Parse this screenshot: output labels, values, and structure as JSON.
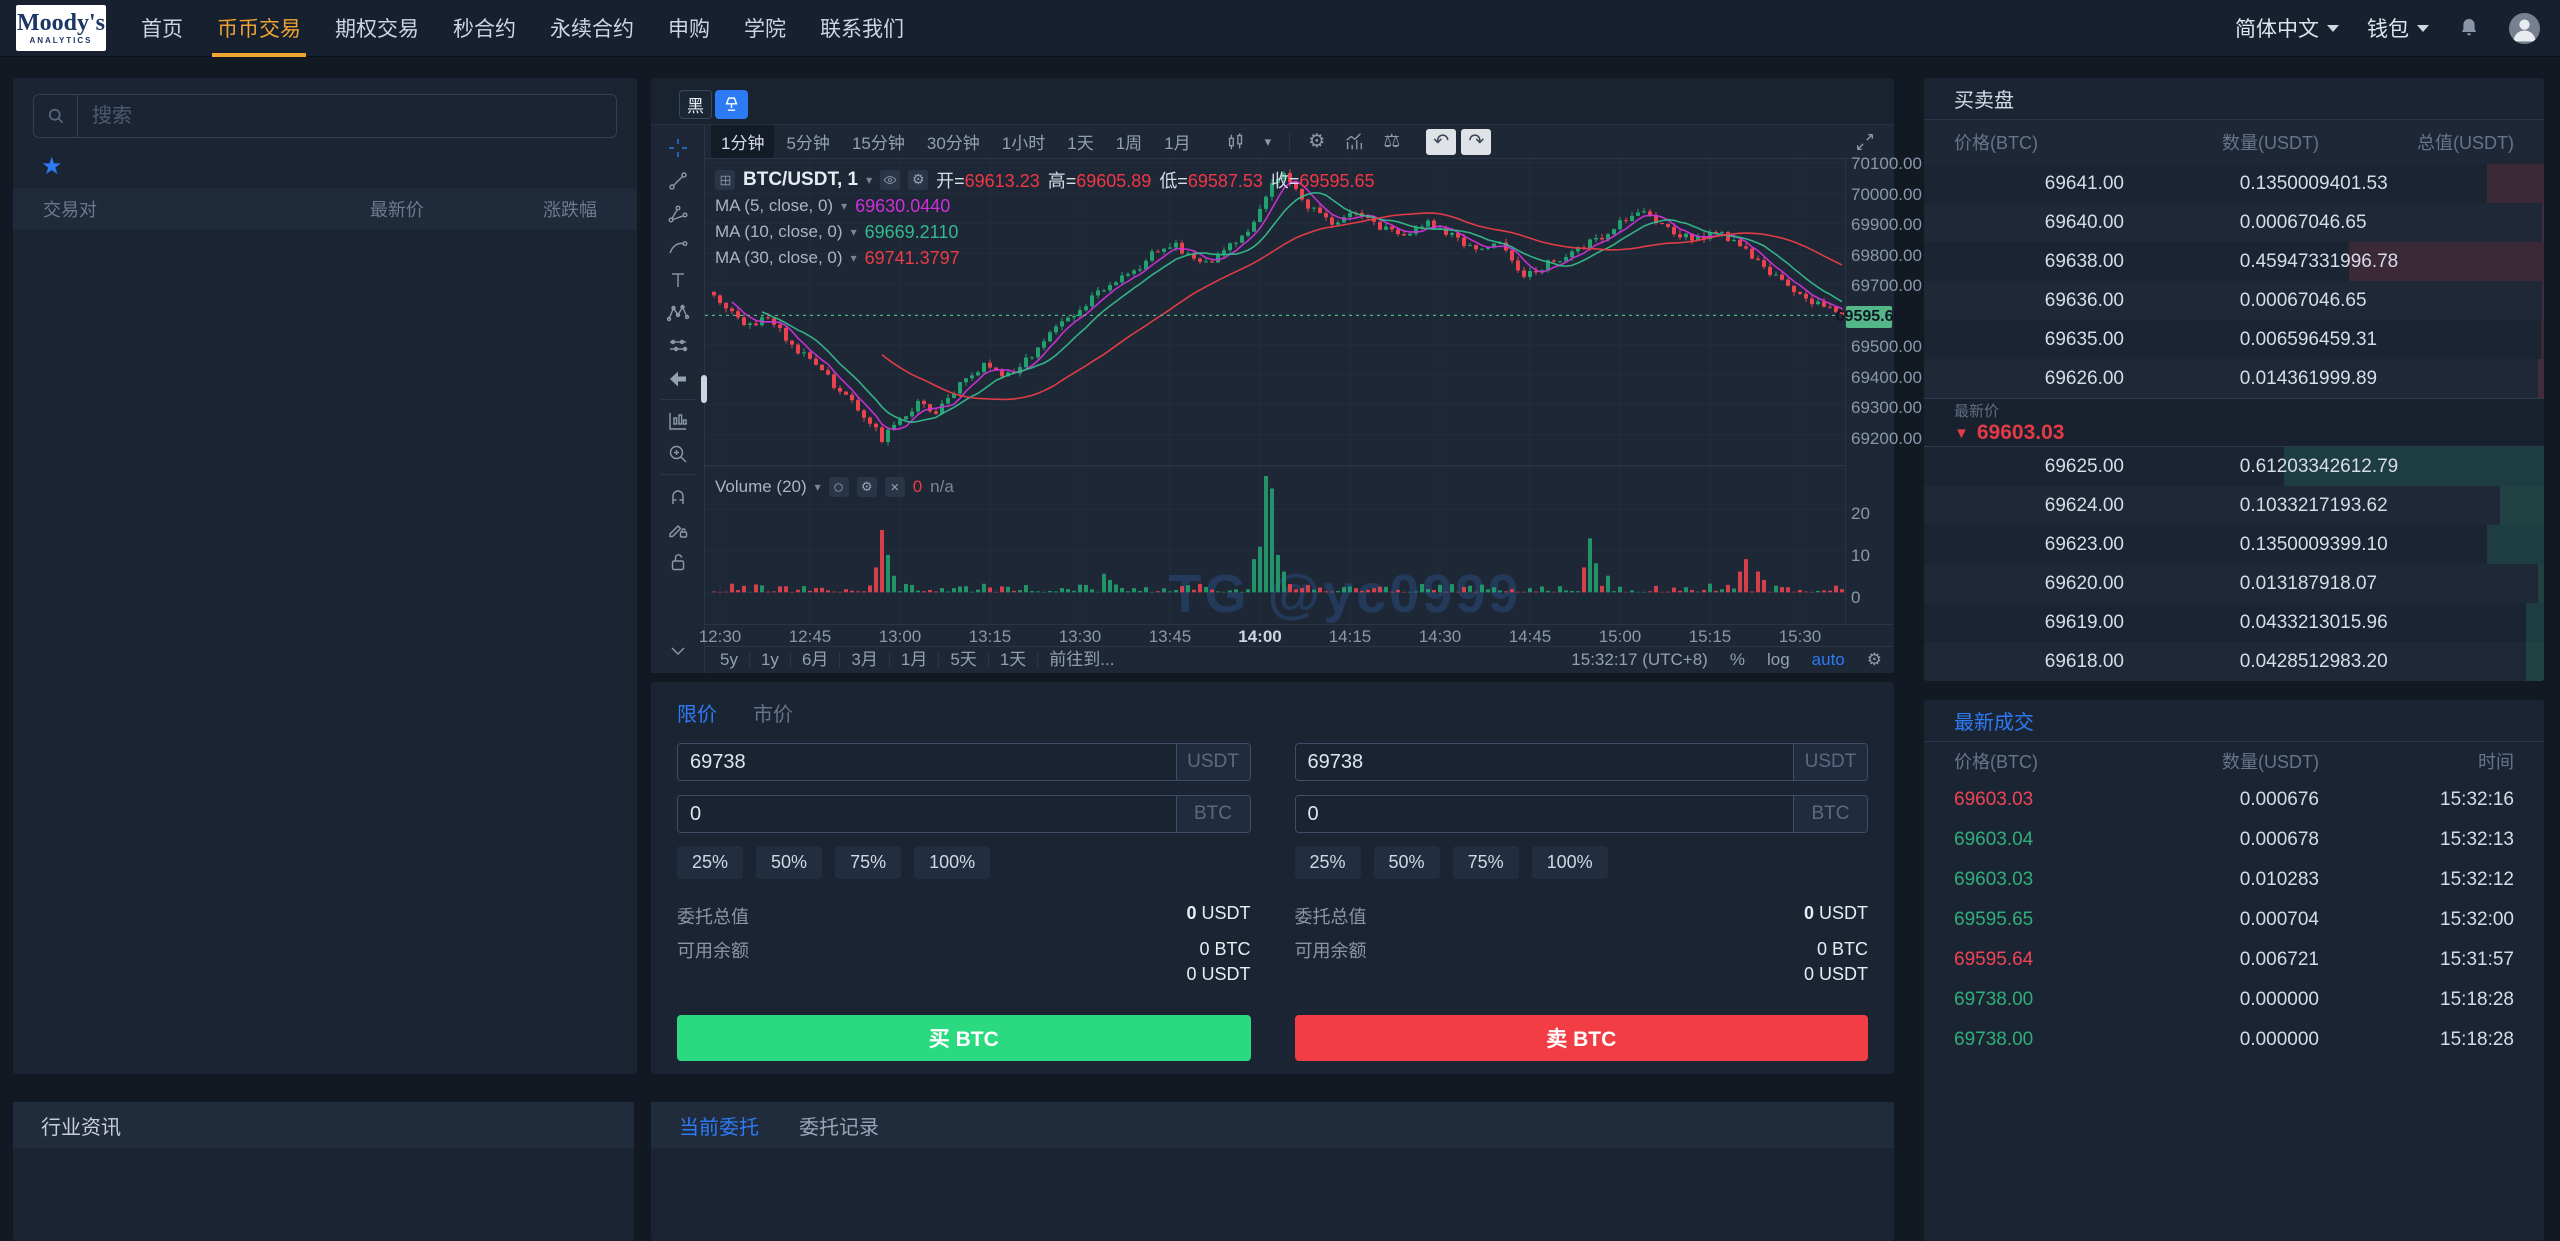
{
  "colors": {
    "accent_blue": "#2d7bf4",
    "accent_orange": "#f0a432",
    "up_green": "#2fae79",
    "down_red": "#ef4455",
    "buy_button": "#2bd981",
    "sell_button": "#f23d45",
    "price_tag_green": "#55b688"
  },
  "icons": {
    "star": "★",
    "gear": "⚙",
    "compare": "⚖",
    "undo": "↶",
    "redo": "↷",
    "caret_down": "▾",
    "close": "×",
    "arrow_down": "▼",
    "text_tool": "T"
  },
  "navbar": {
    "logo_line1": "Moody's",
    "logo_line2": "ANALYTICS",
    "items": [
      {
        "label": "首页",
        "active": false
      },
      {
        "label": "币币交易",
        "active": true
      },
      {
        "label": "期权交易",
        "active": false
      },
      {
        "label": "秒合约",
        "active": false
      },
      {
        "label": "永续合约",
        "active": false
      },
      {
        "label": "申购",
        "active": false
      },
      {
        "label": "学院",
        "active": false
      },
      {
        "label": "联系我们",
        "active": false
      }
    ],
    "language": "简体中文",
    "wallet": "钱包"
  },
  "sidebar": {
    "search_placeholder": "搜索",
    "columns": [
      "交易对",
      "最新价",
      "涨跌幅"
    ]
  },
  "chart": {
    "theme_button": "黑",
    "timeframes": [
      "1分钟",
      "5分钟",
      "15分钟",
      "30分钟",
      "1小时",
      "1天",
      "1周",
      "1月"
    ],
    "active_timeframe": "1分钟",
    "left_toolbar": [
      "crosshair",
      "trend-line",
      "pitchfork",
      "brush",
      "text",
      "xabcd-pattern",
      "forecast",
      "arrow-marker",
      "divider",
      "bar-pattern",
      "zoom-in",
      "divider",
      "magnet",
      "drawing-lock",
      "lock"
    ],
    "legend": {
      "symbol": "BTC/USDT",
      "interval": "1",
      "ohlc": [
        {
          "label": "开=",
          "value": "69613.23"
        },
        {
          "label": "高=",
          "value": "69605.89"
        },
        {
          "label": "低=",
          "value": "69587.53"
        },
        {
          "label": "收=",
          "value": "69595.65"
        }
      ]
    },
    "ma_lines": [
      {
        "label": "MA (5, close, 0)",
        "value": "69630.0440",
        "color": "#cf30d8"
      },
      {
        "label": "MA (10, close, 0)",
        "value": "69669.2110",
        "color": "#36b98c"
      },
      {
        "label": "MA (30, close, 0)",
        "value": "69741.3797",
        "color": "#ea3d47"
      }
    ],
    "volume_legend": {
      "label": "Volume (20)",
      "value": "0",
      "na": "n/a"
    },
    "watermark": "TG @yc0999",
    "last_price": "69595.65",
    "price_ticks": [
      "70100.00",
      "70000.00",
      "69900.00",
      "69800.00",
      "69700.00",
      "69500.00",
      "69400.00",
      "69300.00",
      "69200.00"
    ],
    "volume_ticks": [
      "20",
      "10",
      "0"
    ],
    "time_ticks": [
      "12:30",
      "12:45",
      "13:00",
      "13:15",
      "13:30",
      "13:45",
      "14:00",
      "14:15",
      "14:30",
      "14:45",
      "15:00",
      "15:15",
      "15:30"
    ],
    "bold_time_tick": "14:00",
    "bottom_bar": {
      "ranges": [
        "5y",
        "1y",
        "6月",
        "3月",
        "1月",
        "5天",
        "1天",
        "前往到..."
      ],
      "clock": "15:32:17 (UTC+8)",
      "percent": "%",
      "log": "log",
      "auto": "auto"
    }
  },
  "chart_data": {
    "type": "candlestick",
    "symbol": "BTC/USDT",
    "interval_minutes": 1,
    "x_range": [
      "12:28",
      "15:35"
    ],
    "y_range": [
      69150,
      70150
    ],
    "volume_range": [
      0,
      30
    ],
    "last": 69595.65,
    "ohlc_legend": {
      "open": 69613.23,
      "high": 69605.89,
      "low": 69587.53,
      "close": 69595.65
    },
    "ma_values": {
      "ma5": 69630.044,
      "ma10": 69669.211,
      "ma30": 69741.3797
    },
    "up_color": "#22a06d",
    "down_color": "#e8434e",
    "price_anchors": [
      [
        -2,
        69680
      ],
      [
        0,
        69640
      ],
      [
        4,
        69560
      ],
      [
        8,
        69585
      ],
      [
        12,
        69500
      ],
      [
        16,
        69430
      ],
      [
        20,
        69345
      ],
      [
        24,
        69270
      ],
      [
        27,
        69185
      ],
      [
        30,
        69255
      ],
      [
        33,
        69305
      ],
      [
        36,
        69280
      ],
      [
        40,
        69365
      ],
      [
        44,
        69435
      ],
      [
        48,
        69395
      ],
      [
        52,
        69465
      ],
      [
        56,
        69560
      ],
      [
        60,
        69615
      ],
      [
        64,
        69685
      ],
      [
        68,
        69725
      ],
      [
        72,
        69795
      ],
      [
        76,
        69830
      ],
      [
        80,
        69760
      ],
      [
        84,
        69805
      ],
      [
        88,
        69875
      ],
      [
        92,
        70040
      ],
      [
        94,
        70065
      ],
      [
        98,
        69955
      ],
      [
        102,
        69905
      ],
      [
        106,
        69940
      ],
      [
        110,
        69885
      ],
      [
        114,
        69855
      ],
      [
        118,
        69905
      ],
      [
        122,
        69860
      ],
      [
        126,
        69805
      ],
      [
        130,
        69830
      ],
      [
        134,
        69725
      ],
      [
        138,
        69765
      ],
      [
        142,
        69805
      ],
      [
        146,
        69845
      ],
      [
        150,
        69900
      ],
      [
        154,
        69935
      ],
      [
        158,
        69880
      ],
      [
        162,
        69845
      ],
      [
        166,
        69875
      ],
      [
        170,
        69820
      ],
      [
        174,
        69755
      ],
      [
        178,
        69695
      ],
      [
        182,
        69645
      ],
      [
        187,
        69595.65
      ]
    ],
    "volume_spikes": [
      [
        26,
        6
      ],
      [
        27,
        15
      ],
      [
        28,
        9
      ],
      [
        29,
        4
      ],
      [
        64,
        4.5
      ],
      [
        65,
        3
      ],
      [
        89,
        8
      ],
      [
        90,
        11
      ],
      [
        91,
        28
      ],
      [
        92,
        25
      ],
      [
        93,
        9
      ],
      [
        94,
        5
      ],
      [
        144,
        6
      ],
      [
        145,
        13
      ],
      [
        146,
        7
      ],
      [
        148,
        4
      ],
      [
        170,
        5
      ],
      [
        171,
        8
      ],
      [
        173,
        5
      ],
      [
        174,
        3
      ]
    ]
  },
  "trade": {
    "tabs": [
      {
        "label": "限价",
        "active": true
      },
      {
        "label": "市价",
        "active": false
      }
    ],
    "percents": [
      "25%",
      "50%",
      "75%",
      "100%"
    ],
    "total_label": "委托总值",
    "balance_label": "可用余额",
    "buy": {
      "price": "69738",
      "price_unit": "USDT",
      "amount": "0",
      "amount_unit": "BTC",
      "total_value": "0",
      "total_unit": "USDT",
      "balance_btc": "0 BTC",
      "balance_usdt": "0 USDT",
      "submit": "买 BTC"
    },
    "sell": {
      "price": "69738",
      "price_unit": "USDT",
      "amount": "0",
      "amount_unit": "BTC",
      "total_value": "0",
      "total_unit": "USDT",
      "balance_btc": "0 BTC",
      "balance_usdt": "0 USDT",
      "submit": "卖 BTC"
    }
  },
  "orderbook": {
    "title": "买卖盘",
    "columns": [
      "价格(BTC)",
      "数量(USDT)",
      "总值(USDT)"
    ],
    "asks": [
      {
        "price": "69641.00",
        "qty": "0.135000",
        "total": "9401.53"
      },
      {
        "price": "69640.00",
        "qty": "0.000670",
        "total": "46.65"
      },
      {
        "price": "69638.00",
        "qty": "0.459473",
        "total": "31996.78"
      },
      {
        "price": "69636.00",
        "qty": "0.000670",
        "total": "46.65"
      },
      {
        "price": "69635.00",
        "qty": "0.006596",
        "total": "459.31"
      },
      {
        "price": "69626.00",
        "qty": "0.014361",
        "total": "999.89"
      }
    ],
    "last_price_label": "最新价",
    "last_price": "69603.03",
    "bids": [
      {
        "price": "69625.00",
        "qty": "0.612033",
        "total": "42612.79"
      },
      {
        "price": "69624.00",
        "qty": "0.103321",
        "total": "7193.62"
      },
      {
        "price": "69623.00",
        "qty": "0.135000",
        "total": "9399.10"
      },
      {
        "price": "69620.00",
        "qty": "0.013187",
        "total": "918.07"
      },
      {
        "price": "69619.00",
        "qty": "0.043321",
        "total": "3015.96"
      },
      {
        "price": "69618.00",
        "qty": "0.042851",
        "total": "2983.20"
      }
    ]
  },
  "trades": {
    "title": "最新成交",
    "columns": [
      "价格(BTC)",
      "数量(USDT)",
      "时间"
    ],
    "rows": [
      {
        "price": "69603.03",
        "dir": "down",
        "qty": "0.000676",
        "time": "15:32:16"
      },
      {
        "price": "69603.04",
        "dir": "up",
        "qty": "0.000678",
        "time": "15:32:13"
      },
      {
        "price": "69603.03",
        "dir": "up",
        "qty": "0.010283",
        "time": "15:32:12"
      },
      {
        "price": "69595.65",
        "dir": "up",
        "qty": "0.000704",
        "time": "15:32:00"
      },
      {
        "price": "69595.64",
        "dir": "down",
        "qty": "0.006721",
        "time": "15:31:57"
      },
      {
        "price": "69738.00",
        "dir": "up",
        "qty": "0.000000",
        "time": "15:18:28"
      },
      {
        "price": "69738.00",
        "dir": "up",
        "qty": "0.000000",
        "time": "15:18:28"
      }
    ]
  },
  "bottom": {
    "news_title": "行业资讯",
    "orders_tabs": [
      {
        "label": "当前委托",
        "active": true
      },
      {
        "label": "委托记录",
        "active": false
      }
    ]
  }
}
